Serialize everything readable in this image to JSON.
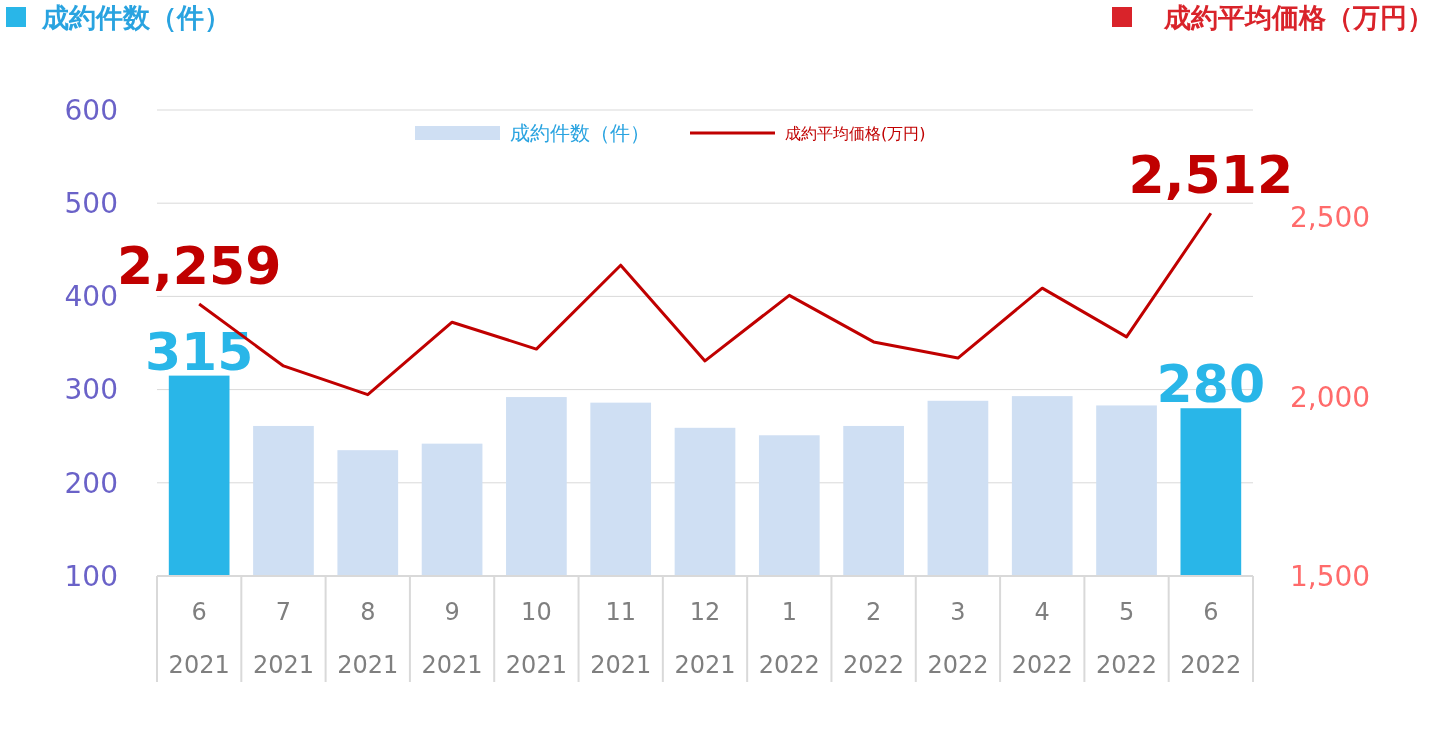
{
  "chart_data": {
    "type": "bar",
    "ylabel": "成約件数（件）",
    "y2label": "成約平均価格（万円）",
    "categories": [
      "6\n2021",
      "7\n2021",
      "8\n2021",
      "9\n2021",
      "10\n2021",
      "11\n2021",
      "12\n2021",
      "1\n2022",
      "2\n2022",
      "3\n2022",
      "4\n2022",
      "5\n2022",
      "6\n2022"
    ],
    "series": [
      {
        "name": "成約件数（件）",
        "color": "#cfdff3",
        "colors": [
          "#29b6e8",
          "#cfdff3",
          "#cfdff3",
          "#cfdff3",
          "#cfdff3",
          "#cfdff3",
          "#cfdff3",
          "#cfdff3",
          "#cfdff3",
          "#cfdff3",
          "#cfdff3",
          "#cfdff3",
          "#29b6e8"
        ],
        "values": [
          315,
          261,
          235,
          242,
          292,
          286,
          259,
          251,
          261,
          288,
          293,
          283,
          280
        ],
        "value_labels": [
          "315",
          null,
          null,
          null,
          null,
          null,
          null,
          null,
          null,
          null,
          null,
          null,
          "280"
        ]
      },
      {
        "name": "成約平均価格(万円)",
        "type": "line",
        "axis": "y2",
        "color": "#c00000",
        "values": [
          2259,
          2086,
          2006,
          2208,
          2133,
          2367,
          2100,
          2283,
          2153,
          2108,
          2303,
          2167,
          2512
        ],
        "value_labels": [
          "2,259",
          null,
          null,
          null,
          null,
          null,
          null,
          null,
          null,
          null,
          null,
          null,
          "2,512"
        ]
      }
    ],
    "ylim": [
      100,
      600
    ],
    "yticks": [
      100,
      200,
      300,
      400,
      500,
      600
    ],
    "y2lim": [
      1500,
      2800
    ],
    "y2ticks": [
      {
        "value": 1500,
        "label": "1,500"
      },
      {
        "value": 2000,
        "label": "2,000"
      },
      {
        "value": 2500,
        "label": "2,500"
      }
    ],
    "grid": "y",
    "legend": "top",
    "marker": "none",
    "line_style": "solid"
  }
}
